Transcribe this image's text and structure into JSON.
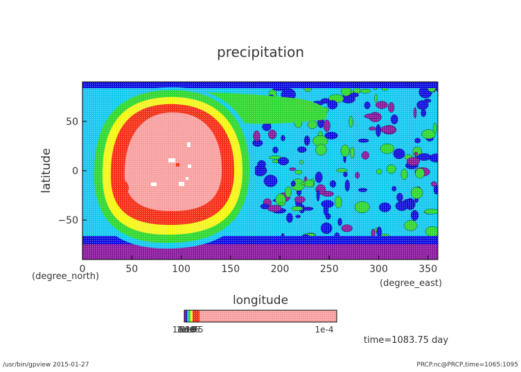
{
  "chart_data": {
    "type": "heatmap",
    "title": "precipitation",
    "xlabel": "longitude",
    "ylabel": "latitude",
    "x_unit": "(degree_east)",
    "y_unit": "(degree_north)",
    "xlim": [
      0,
      360
    ],
    "ylim": [
      -90,
      90
    ],
    "x_ticks": [
      0,
      50,
      100,
      150,
      200,
      250,
      300,
      350
    ],
    "y_ticks": [
      -50,
      0,
      50
    ],
    "colorbar": {
      "min_label": "1e-10",
      "max_label": "1e-4",
      "overlapping_low_labels": [
        "1e-10",
        "1e-9",
        "1e-8",
        "1e-7",
        "1e-6",
        "1e-5"
      ],
      "colors": [
        "#8b1a9e",
        "#1010e0",
        "#15c8f0",
        "#30d830",
        "#f5f51a",
        "#f53018",
        "#f8a0a0"
      ]
    },
    "features": [
      {
        "name": "high precipitation core",
        "center_lon": 90,
        "center_lat": 5,
        "level": "max"
      }
    ]
  },
  "annotations": {
    "time": "time=1083.75 day",
    "footer_left": "/usr/bin/gpview  2015-01-27",
    "footer_right": "PRCP.nc@PRCP,time=1065:1095"
  }
}
